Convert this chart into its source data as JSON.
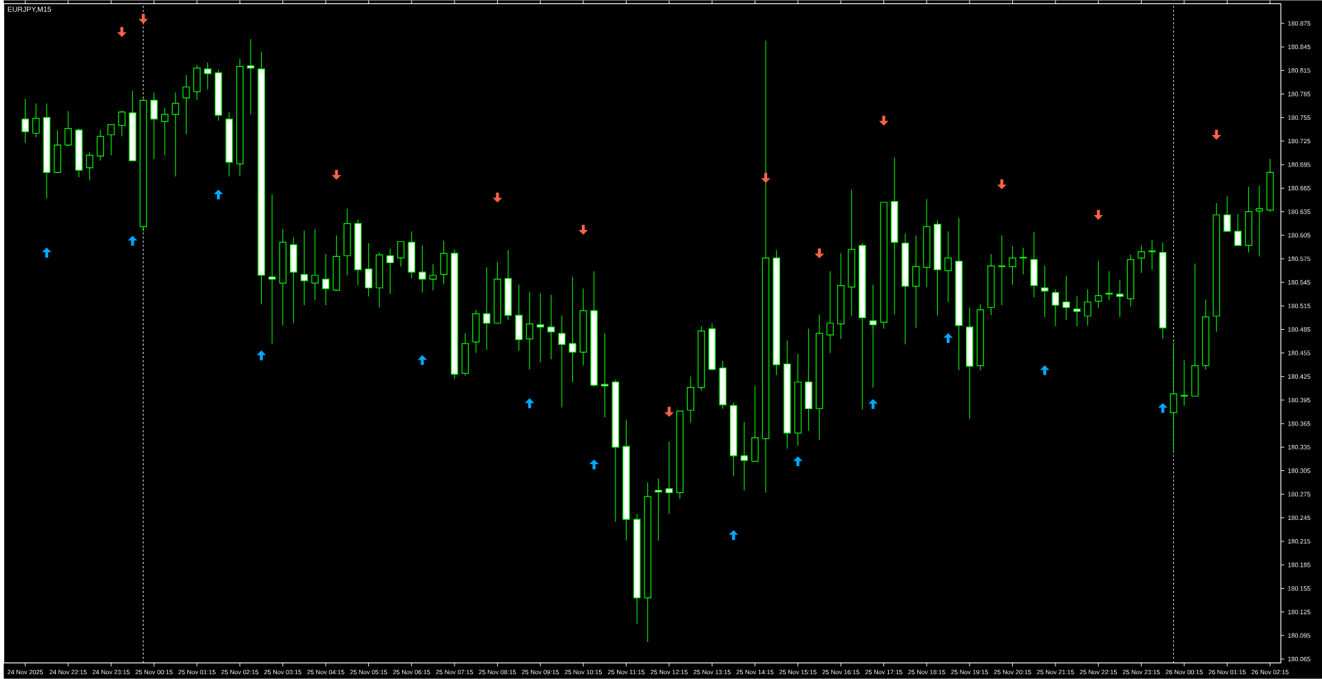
{
  "chart_data": {
    "type": "candlestick",
    "title": "EURJPY,M15",
    "color": "#00ff00",
    "x": [
      "2025-11-24T21:15",
      "2025-11-24T21:30",
      "2025-11-24T21:45",
      "2025-11-24T22:00",
      "2025-11-24T22:15",
      "2025-11-24T22:30",
      "2025-11-24T22:45",
      "2025-11-24T23:00",
      "2025-11-24T23:15",
      "2025-11-24T23:30",
      "2025-11-24T23:45",
      "2025-11-25T00:00",
      "2025-11-25T00:15",
      "2025-11-25T00:30",
      "2025-11-25T00:45",
      "2025-11-25T01:00",
      "2025-11-25T01:15",
      "2025-11-25T01:30",
      "2025-11-25T01:45",
      "2025-11-25T02:00",
      "2025-11-25T02:15",
      "2025-11-25T02:30",
      "2025-11-25T02:45",
      "2025-11-25T03:00",
      "2025-11-25T03:15",
      "2025-11-25T03:30",
      "2025-11-25T03:45",
      "2025-11-25T04:00",
      "2025-11-25T04:15",
      "2025-11-25T04:30",
      "2025-11-25T04:45",
      "2025-11-25T05:00",
      "2025-11-25T05:15",
      "2025-11-25T05:30",
      "2025-11-25T05:45",
      "2025-11-25T06:00",
      "2025-11-25T06:15",
      "2025-11-25T06:30",
      "2025-11-25T06:45",
      "2025-11-25T07:00",
      "2025-11-25T07:15",
      "2025-11-25T07:30",
      "2025-11-25T07:45",
      "2025-11-25T08:00",
      "2025-11-25T08:15",
      "2025-11-25T08:30",
      "2025-11-25T08:45",
      "2025-11-25T09:00",
      "2025-11-25T09:15",
      "2025-11-25T09:30",
      "2025-11-25T09:45",
      "2025-11-25T10:00",
      "2025-11-25T10:15",
      "2025-11-25T10:30",
      "2025-11-25T10:45",
      "2025-11-25T11:00",
      "2025-11-25T11:15",
      "2025-11-25T11:30",
      "2025-11-25T11:45",
      "2025-11-25T12:00",
      "2025-11-25T12:15",
      "2025-11-25T12:30",
      "2025-11-25T12:45",
      "2025-11-25T13:00",
      "2025-11-25T13:15",
      "2025-11-25T13:30",
      "2025-11-25T13:45",
      "2025-11-25T14:00",
      "2025-11-25T14:15",
      "2025-11-25T14:30",
      "2025-11-25T14:45",
      "2025-11-25T15:00",
      "2025-11-25T15:15",
      "2025-11-25T15:30",
      "2025-11-25T15:45",
      "2025-11-25T16:00",
      "2025-11-25T16:15",
      "2025-11-25T16:30",
      "2025-11-25T16:45",
      "2025-11-25T17:00",
      "2025-11-25T17:15",
      "2025-11-25T17:30",
      "2025-11-25T17:45",
      "2025-11-25T18:00",
      "2025-11-25T18:15",
      "2025-11-25T18:30",
      "2025-11-25T18:45",
      "2025-11-25T19:00",
      "2025-11-25T19:15",
      "2025-11-25T19:30",
      "2025-11-25T19:45",
      "2025-11-25T20:00",
      "2025-11-25T20:15",
      "2025-11-25T20:30",
      "2025-11-25T20:45",
      "2025-11-25T21:00",
      "2025-11-25T21:15",
      "2025-11-25T21:30",
      "2025-11-25T21:45",
      "2025-11-25T22:00",
      "2025-11-25T22:15",
      "2025-11-25T22:30",
      "2025-11-25T22:45",
      "2025-11-25T23:00",
      "2025-11-25T23:15",
      "2025-11-25T23:30",
      "2025-11-25T23:45",
      "2025-11-26T00:00",
      "2025-11-26T00:15",
      "2025-11-26T00:30",
      "2025-11-26T00:45",
      "2025-11-26T01:00",
      "2025-11-26T01:15",
      "2025-11-26T01:30",
      "2025-11-26T01:45",
      "2025-11-26T02:00",
      "2025-11-26T02:15"
    ],
    "ohlc": [
      [
        180.753,
        180.779,
        180.723,
        180.737
      ],
      [
        180.735,
        180.773,
        180.73,
        180.754
      ],
      [
        180.755,
        180.773,
        180.652,
        180.685
      ],
      [
        180.685,
        180.739,
        180.684,
        180.72
      ],
      [
        180.72,
        180.763,
        180.719,
        180.741
      ],
      [
        180.739,
        180.741,
        180.679,
        180.688
      ],
      [
        180.691,
        180.711,
        180.675,
        180.707
      ],
      [
        180.706,
        180.739,
        180.7,
        180.731
      ],
      [
        180.733,
        180.746,
        180.707,
        180.746
      ],
      [
        180.745,
        180.764,
        180.731,
        180.762
      ],
      [
        180.761,
        180.789,
        180.7,
        180.7
      ],
      [
        180.616,
        180.779,
        180.61,
        180.777
      ],
      [
        180.777,
        180.787,
        180.702,
        180.753
      ],
      [
        180.75,
        180.767,
        180.707,
        180.759
      ],
      [
        180.759,
        180.787,
        180.68,
        180.773
      ],
      [
        180.78,
        180.809,
        180.734,
        180.794
      ],
      [
        180.788,
        180.822,
        180.777,
        180.818
      ],
      [
        180.817,
        180.825,
        180.791,
        180.811
      ],
      [
        180.812,
        180.816,
        180.751,
        180.758
      ],
      [
        180.753,
        180.762,
        180.68,
        180.698
      ],
      [
        180.696,
        180.83,
        180.681,
        180.82
      ],
      [
        180.821,
        180.855,
        180.759,
        180.818
      ],
      [
        180.817,
        180.839,
        180.517,
        180.554
      ],
      [
        180.552,
        180.657,
        180.467,
        180.549
      ],
      [
        180.544,
        180.613,
        180.49,
        180.596
      ],
      [
        180.593,
        180.602,
        180.493,
        180.558
      ],
      [
        180.555,
        180.611,
        180.516,
        180.547
      ],
      [
        180.544,
        180.613,
        180.522,
        180.554
      ],
      [
        180.549,
        180.581,
        180.516,
        180.537
      ],
      [
        180.535,
        180.605,
        180.534,
        180.578
      ],
      [
        180.579,
        180.639,
        180.554,
        180.62
      ],
      [
        180.62,
        180.625,
        180.541,
        180.561
      ],
      [
        180.562,
        180.595,
        180.527,
        180.538
      ],
      [
        180.538,
        180.583,
        180.513,
        180.58
      ],
      [
        180.579,
        180.588,
        180.53,
        180.57
      ],
      [
        180.576,
        180.597,
        180.565,
        180.597
      ],
      [
        180.596,
        180.61,
        180.55,
        180.558
      ],
      [
        180.558,
        180.592,
        180.532,
        180.549
      ],
      [
        180.549,
        180.568,
        180.535,
        180.554
      ],
      [
        180.555,
        180.598,
        180.543,
        180.582
      ],
      [
        180.582,
        180.587,
        180.422,
        180.428
      ],
      [
        180.429,
        180.48,
        180.426,
        180.467
      ],
      [
        180.469,
        180.51,
        180.455,
        180.505
      ],
      [
        180.505,
        180.564,
        180.459,
        180.493
      ],
      [
        180.493,
        180.571,
        180.492,
        180.549
      ],
      [
        180.55,
        180.586,
        180.497,
        180.503
      ],
      [
        180.503,
        180.542,
        180.458,
        180.472
      ],
      [
        180.473,
        180.533,
        180.434,
        180.492
      ],
      [
        180.491,
        180.531,
        180.443,
        180.488
      ],
      [
        180.488,
        180.529,
        180.447,
        180.482
      ],
      [
        180.48,
        180.503,
        180.386,
        180.466
      ],
      [
        180.467,
        180.552,
        180.418,
        180.456
      ],
      [
        180.456,
        180.537,
        180.439,
        180.509
      ],
      [
        180.509,
        180.559,
        180.412,
        180.414
      ],
      [
        180.415,
        180.48,
        180.373,
        180.413
      ],
      [
        180.418,
        180.421,
        180.24,
        180.335
      ],
      [
        180.336,
        180.37,
        180.216,
        180.243
      ],
      [
        180.243,
        180.25,
        180.11,
        180.143
      ],
      [
        180.143,
        180.29,
        180.087,
        180.272
      ],
      [
        180.28,
        180.295,
        180.216,
        180.278
      ],
      [
        180.282,
        180.342,
        180.25,
        180.277
      ],
      [
        180.277,
        180.381,
        180.269,
        180.381
      ],
      [
        180.382,
        180.425,
        180.366,
        180.411
      ],
      [
        180.411,
        180.489,
        180.407,
        180.483
      ],
      [
        180.486,
        180.493,
        180.433,
        180.434
      ],
      [
        180.436,
        180.445,
        180.384,
        180.389
      ],
      [
        180.388,
        180.392,
        180.298,
        180.324
      ],
      [
        180.324,
        180.367,
        180.28,
        180.318
      ],
      [
        180.317,
        180.413,
        180.317,
        180.347
      ],
      [
        180.346,
        180.853,
        180.277,
        180.576
      ],
      [
        180.576,
        180.586,
        180.427,
        180.44
      ],
      [
        180.441,
        180.471,
        180.333,
        180.353
      ],
      [
        180.353,
        180.454,
        180.337,
        180.418
      ],
      [
        180.418,
        180.486,
        180.356,
        180.384
      ],
      [
        180.384,
        180.504,
        180.344,
        180.48
      ],
      [
        180.478,
        180.559,
        180.455,
        180.493
      ],
      [
        180.492,
        180.582,
        180.473,
        180.541
      ],
      [
        180.539,
        180.663,
        180.502,
        180.587
      ],
      [
        180.592,
        180.595,
        180.383,
        180.5
      ],
      [
        180.496,
        180.542,
        180.411,
        180.491
      ],
      [
        180.494,
        180.647,
        180.486,
        180.647
      ],
      [
        180.648,
        180.704,
        180.504,
        180.596
      ],
      [
        180.595,
        180.607,
        180.466,
        180.54
      ],
      [
        180.54,
        180.605,
        180.487,
        180.565
      ],
      [
        180.564,
        180.651,
        180.539,
        180.616
      ],
      [
        180.619,
        180.624,
        180.503,
        180.561
      ],
      [
        180.56,
        180.61,
        180.52,
        180.576
      ],
      [
        180.572,
        180.627,
        180.433,
        180.49
      ],
      [
        180.488,
        180.513,
        180.371,
        180.438
      ],
      [
        180.439,
        180.517,
        180.433,
        180.51
      ],
      [
        180.513,
        180.581,
        180.503,
        180.566
      ],
      [
        180.565,
        180.605,
        180.516,
        180.566
      ],
      [
        180.565,
        180.591,
        180.542,
        180.576
      ],
      [
        180.577,
        180.589,
        180.555,
        180.576
      ],
      [
        180.574,
        180.609,
        180.526,
        180.541
      ],
      [
        180.538,
        180.566,
        180.501,
        180.534
      ],
      [
        180.532,
        180.536,
        180.489,
        180.516
      ],
      [
        180.52,
        180.553,
        180.497,
        180.513
      ],
      [
        180.511,
        180.527,
        180.489,
        180.508
      ],
      [
        180.502,
        180.536,
        180.49,
        180.52
      ],
      [
        180.521,
        180.572,
        180.512,
        180.528
      ],
      [
        180.53,
        180.559,
        180.522,
        180.531
      ],
      [
        180.53,
        180.548,
        180.501,
        180.527
      ],
      [
        180.524,
        180.58,
        180.514,
        180.574
      ],
      [
        180.576,
        180.592,
        180.557,
        180.584
      ],
      [
        180.584,
        180.599,
        180.561,
        180.585
      ],
      [
        180.583,
        180.596,
        180.473,
        180.487
      ],
      [
        180.379,
        180.468,
        180.329,
        180.403
      ],
      [
        180.401,
        180.446,
        180.388,
        180.4
      ],
      [
        180.4,
        180.569,
        180.4,
        180.439
      ],
      [
        180.439,
        180.523,
        180.434,
        180.501
      ],
      [
        180.502,
        180.646,
        180.482,
        180.631
      ],
      [
        180.631,
        180.655,
        180.609,
        180.61
      ],
      [
        180.61,
        180.632,
        180.591,
        180.592
      ],
      [
        180.592,
        180.667,
        180.583,
        180.635
      ],
      [
        180.636,
        180.668,
        180.578,
        180.639
      ],
      [
        180.637,
        180.702,
        180.635,
        180.685
      ]
    ],
    "series": [
      {
        "type": "scatter",
        "color": "#00a8ff",
        "x": [
          "2025-11-24T21:45",
          "2025-11-24T23:45",
          "2025-11-25T01:45",
          "2025-11-25T02:45",
          "2025-11-25T06:30",
          "2025-11-25T09:00",
          "2025-11-25T10:30",
          "2025-11-25T13:45",
          "2025-11-25T15:15",
          "2025-11-25T17:00",
          "2025-11-25T18:45",
          "2025-11-25T21:00",
          "2025-11-25T23:45"
        ],
        "values": [
          180.583,
          180.598,
          180.657,
          180.452,
          180.446,
          180.391,
          180.313,
          180.223,
          180.317,
          180.39,
          180.474,
          180.433,
          180.385
        ]
      },
      {
        "type": "scatter",
        "color": "#ff6347",
        "x": [
          "2025-11-24T23:30",
          "2025-11-25T00:00",
          "2025-11-25T04:30",
          "2025-11-25T08:15",
          "2025-11-25T10:15",
          "2025-11-25T12:15",
          "2025-11-25T14:30",
          "2025-11-25T15:45",
          "2025-11-25T17:15",
          "2025-11-25T20:00",
          "2025-11-25T22:15",
          "2025-11-26T01:00"
        ],
        "values": [
          180.864,
          180.881,
          180.682,
          180.653,
          180.612,
          180.38,
          180.678,
          180.582,
          180.751,
          180.67,
          180.631,
          180.733
        ]
      }
    ],
    "xlim": [
      "2025-11-24T20:45",
      "2025-11-26T02:30"
    ],
    "ylim": [
      180.06,
      180.9
    ],
    "xticks": [
      {
        "value": "2025-11-24T21:15",
        "label": "24 Nov 2025"
      },
      {
        "value": "2025-11-24T22:15",
        "label": "24 Nov 22:15"
      },
      {
        "value": "2025-11-24T23:15",
        "label": "24 Nov 23:15"
      },
      {
        "value": "2025-11-25T00:15",
        "label": "25 Nov 00:15"
      },
      {
        "value": "2025-11-25T01:15",
        "label": "25 Nov 01:15"
      },
      {
        "value": "2025-11-25T02:15",
        "label": "25 Nov 02:15"
      },
      {
        "value": "2025-11-25T03:15",
        "label": "25 Nov 03:15"
      },
      {
        "value": "2025-11-25T04:15",
        "label": "25 Nov 04:15"
      },
      {
        "value": "2025-11-25T05:15",
        "label": "25 Nov 05:15"
      },
      {
        "value": "2025-11-25T06:15",
        "label": "25 Nov 06:15"
      },
      {
        "value": "2025-11-25T07:15",
        "label": "25 Nov 07:15"
      },
      {
        "value": "2025-11-25T08:15",
        "label": "25 Nov 08:15"
      },
      {
        "value": "2025-11-25T09:15",
        "label": "25 Nov 09:15"
      },
      {
        "value": "2025-11-25T10:15",
        "label": "25 Nov 10:15"
      },
      {
        "value": "2025-11-25T11:15",
        "label": "25 Nov 11:15"
      },
      {
        "value": "2025-11-25T12:15",
        "label": "25 Nov 12:15"
      },
      {
        "value": "2025-11-25T13:15",
        "label": "25 Nov 13:15"
      },
      {
        "value": "2025-11-25T14:15",
        "label": "25 Nov 14:15"
      },
      {
        "value": "2025-11-25T15:15",
        "label": "25 Nov 15:15"
      },
      {
        "value": "2025-11-25T16:15",
        "label": "25 Nov 16:15"
      },
      {
        "value": "2025-11-25T17:15",
        "label": "25 Nov 17:15"
      },
      {
        "value": "2025-11-25T18:15",
        "label": "25 Nov 18:15"
      },
      {
        "value": "2025-11-25T19:15",
        "label": "25 Nov 19:15"
      },
      {
        "value": "2025-11-25T20:15",
        "label": "25 Nov 20:15"
      },
      {
        "value": "2025-11-25T21:15",
        "label": "25 Nov 21:15"
      },
      {
        "value": "2025-11-25T22:15",
        "label": "25 Nov 22:15"
      },
      {
        "value": "2025-11-25T23:15",
        "label": "25 Nov 23:15"
      },
      {
        "value": "2025-11-26T00:15",
        "label": "26 Nov 00:15"
      },
      {
        "value": "2025-11-26T01:15",
        "label": "26 Nov 01:15"
      },
      {
        "value": "2025-11-26T02:15",
        "label": "26 Nov 02:15"
      }
    ],
    "yticks": [
      180.065,
      180.095,
      180.125,
      180.155,
      180.185,
      180.215,
      180.245,
      180.275,
      180.305,
      180.335,
      180.365,
      180.395,
      180.425,
      180.455,
      180.485,
      180.515,
      180.545,
      180.575,
      180.605,
      180.635,
      180.665,
      180.695,
      180.725,
      180.755,
      180.785,
      180.815,
      180.845,
      180.875
    ],
    "ref_lines": [
      {
        "axis": "x",
        "value": "2025-11-25T00:00",
        "color": "#ffffff",
        "line_style": "dashed"
      },
      {
        "axis": "x",
        "value": "2025-11-26T00:00",
        "color": "#ffffff",
        "line_style": "dashed"
      }
    ]
  }
}
